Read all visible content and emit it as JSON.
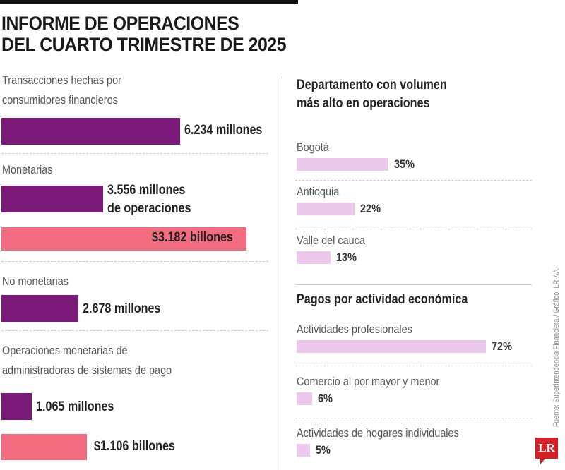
{
  "colors": {
    "purple": "#7b1a78",
    "pink": "#f26b7e",
    "lilac": "#ecc9ec"
  },
  "title": [
    "INFORME DE OPERACIONES",
    "DEL CUARTO TRIMESTRE DE 2025"
  ],
  "chart_data": [
    {
      "type": "bar",
      "title": "",
      "groups": [
        {
          "label": [
            "Transacciones hechas por",
            "consumidores financieros"
          ],
          "bars": [
            {
              "value": 6234,
              "unit": "millones",
              "label": [
                "6.234 millones"
              ],
              "color": "purple"
            }
          ]
        },
        {
          "label": [
            "Monetarias"
          ],
          "bars": [
            {
              "value": 3556,
              "unit": "millones",
              "label": [
                "3.556 millones",
                "de operaciones"
              ],
              "color": "purple"
            },
            {
              "value": 3182,
              "unit": "billones",
              "label": [
                "$3.182 billones"
              ],
              "color": "pink"
            }
          ]
        },
        {
          "label": [
            "No monetarias"
          ],
          "bars": [
            {
              "value": 2678,
              "unit": "millones",
              "label": [
                "2.678 millones"
              ],
              "color": "purple"
            }
          ]
        },
        {
          "label": [
            "Operaciones monetarias de",
            "administradoras de sistemas de pago"
          ],
          "bars": [
            {
              "value": 1065,
              "unit": "millones",
              "label": [
                "1.065 millones"
              ],
              "color": "purple"
            },
            {
              "value": 1106,
              "unit": "billones",
              "label": [
                "$1.106 billones"
              ],
              "color": "pink"
            }
          ]
        }
      ]
    },
    {
      "type": "bar",
      "title": [
        "Departamento con volumen",
        "más alto en operaciones"
      ],
      "categories": [
        "Bogotá",
        "Antioquia",
        "Valle del cauca"
      ],
      "values": [
        35,
        22,
        13
      ],
      "labels": [
        "35%",
        "22%",
        "13%"
      ]
    },
    {
      "type": "bar",
      "title": [
        "Pagos por actividad económica"
      ],
      "categories": [
        "Actividades profesionales",
        "Comercio al por mayor y menor",
        "Actividades de hogares individuales"
      ],
      "values": [
        72,
        6,
        5
      ],
      "labels": [
        "72%",
        "6%",
        "5%"
      ]
    }
  ],
  "source": "Fuente: Superintendencia Financiera / Gráfico: LR-AA",
  "logo": "LR"
}
